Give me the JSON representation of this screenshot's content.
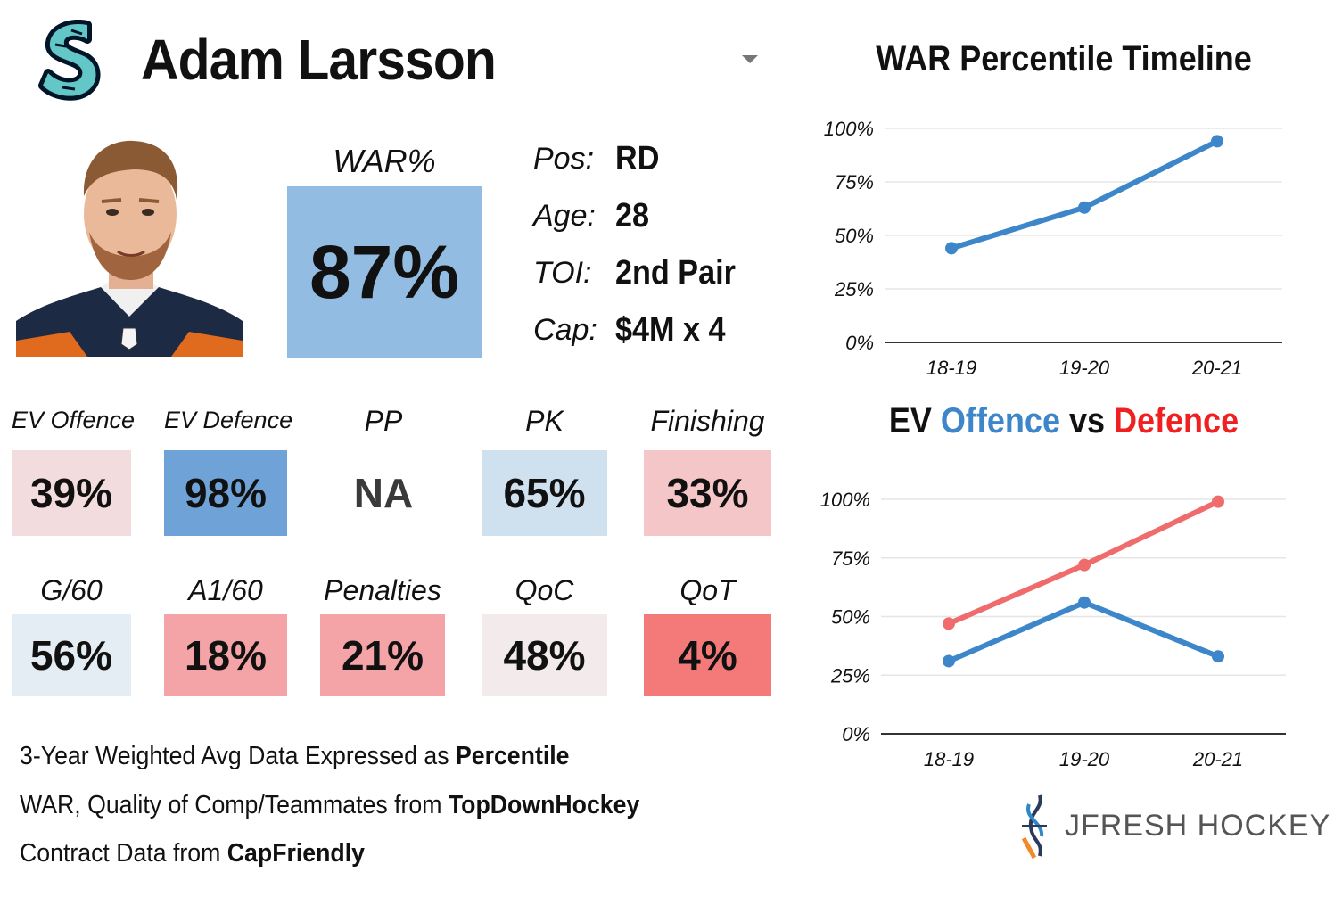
{
  "player": {
    "name": "Adam Larsson",
    "war_label": "WAR%",
    "war_value": "87%",
    "info": [
      {
        "label": "Pos:",
        "value": "RD"
      },
      {
        "label": "Age:",
        "value": "28"
      },
      {
        "label": "TOI:",
        "value": "2nd Pair"
      },
      {
        "label": "Cap:",
        "value": "$4M x 4"
      }
    ]
  },
  "colors": {
    "blue_strong": "#6fa3d8",
    "blue_mid": "#93bce3",
    "blue_light": "#cfe0ef",
    "blue_faint": "#e4ecf4",
    "red_strong": "#f47a7a",
    "red_mid": "#f4a4a6",
    "red_light": "#f5c6c8",
    "red_faint": "#f3dcdd",
    "neutral": "#f2eaeb",
    "line_blue": "#3d86c9",
    "line_red": "#f06b6b",
    "offence_title": "#3d86c9",
    "defence_title": "#f02020"
  },
  "stats": [
    {
      "label": "EV Offence",
      "value": "39%",
      "color": "#f3dcdd"
    },
    {
      "label": "EV Defence",
      "value": "98%",
      "color": "#6fa3d8"
    },
    {
      "label": "PP",
      "value": "NA",
      "color": "#ffffff"
    },
    {
      "label": "PK",
      "value": "65%",
      "color": "#cfe0ef"
    },
    {
      "label": "Finishing",
      "value": "33%",
      "color": "#f5c6c8"
    },
    {
      "label": "G/60",
      "value": "56%",
      "color": "#e4ecf4"
    },
    {
      "label": "A1/60",
      "value": "18%",
      "color": "#f4a4a6"
    },
    {
      "label": "Penalties",
      "value": "21%",
      "color": "#f4a4a6"
    },
    {
      "label": "QoC",
      "value": "48%",
      "color": "#f2eaeb"
    },
    {
      "label": "QoT",
      "value": "4%",
      "color": "#f47a7a"
    }
  ],
  "footnotes": [
    {
      "text": "3-Year Weighted Avg Data Expressed as ",
      "bold": "Percentile"
    },
    {
      "text": "WAR, Quality of Comp/Teammates from ",
      "bold": "TopDownHockey"
    },
    {
      "text": "Contract Data from ",
      "bold": "CapFriendly"
    }
  ],
  "brand": {
    "text": "JFRESH HOCKEY"
  },
  "chart_data": [
    {
      "type": "line",
      "title": "WAR Percentile Timeline",
      "categories": [
        "18-19",
        "19-20",
        "20-21"
      ],
      "yticks": [
        "0%",
        "25%",
        "50%",
        "75%",
        "100%"
      ],
      "ylim": [
        0,
        100
      ],
      "grid": true,
      "series": [
        {
          "values": [
            44,
            63,
            94
          ],
          "color": "#3d86c9"
        }
      ]
    },
    {
      "type": "line",
      "title_parts": [
        {
          "text": "EV ",
          "color": "#111111"
        },
        {
          "text": "Offence",
          "color": "#3d86c9"
        },
        {
          "text": " vs ",
          "color": "#111111"
        },
        {
          "text": "Defence",
          "color": "#f02020"
        }
      ],
      "categories": [
        "18-19",
        "19-20",
        "20-21"
      ],
      "yticks": [
        "0%",
        "25%",
        "50%",
        "75%",
        "100%"
      ],
      "ylim": [
        0,
        100
      ],
      "grid": true,
      "series": [
        {
          "name": "Offence",
          "values": [
            31,
            56,
            33
          ],
          "color": "#3d86c9"
        },
        {
          "name": "Defence",
          "values": [
            47,
            72,
            99
          ],
          "color": "#f06b6b"
        }
      ]
    }
  ]
}
